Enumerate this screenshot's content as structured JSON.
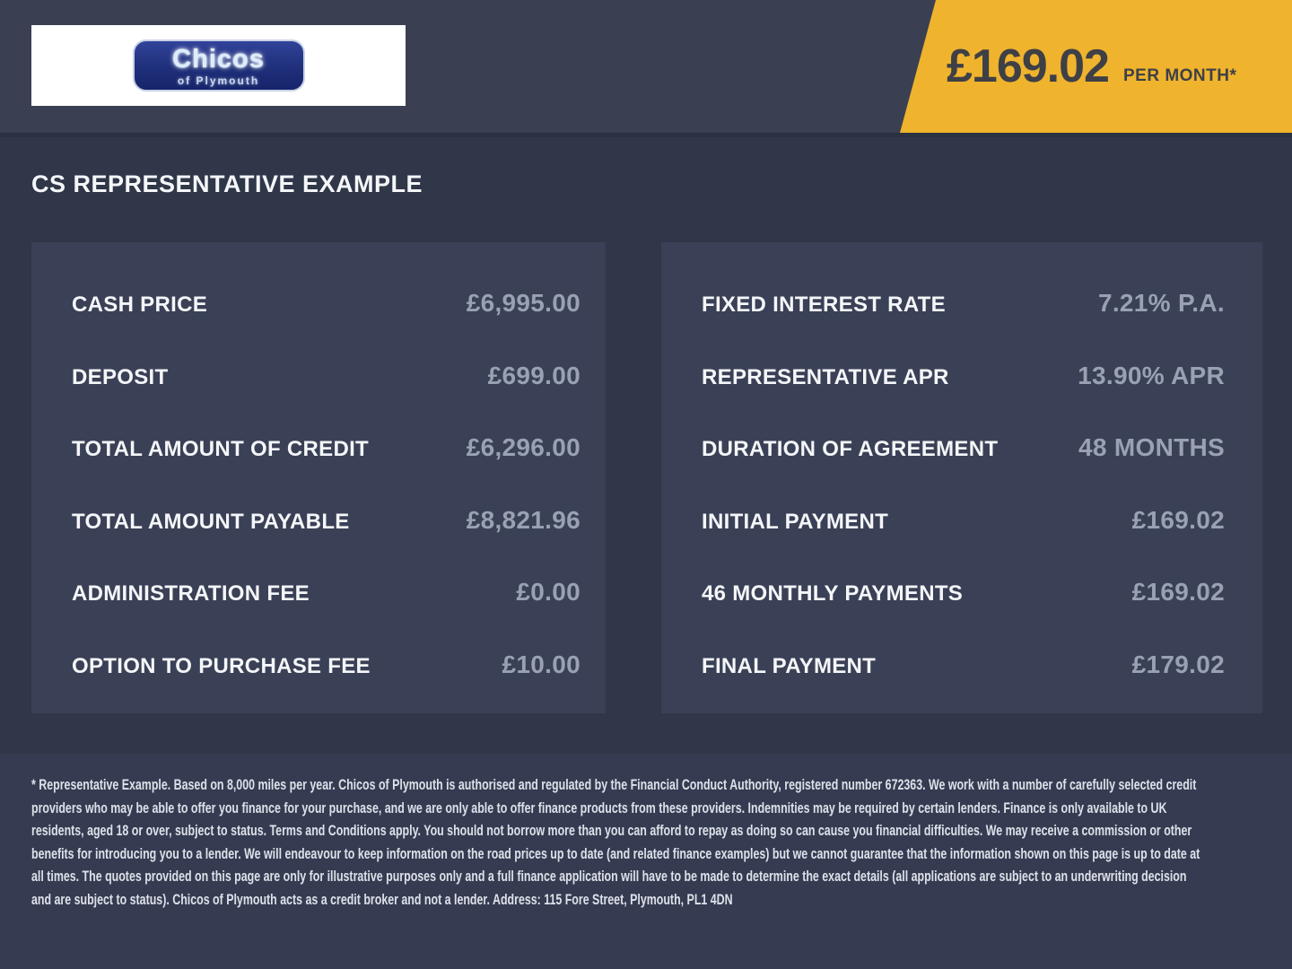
{
  "header": {
    "logo": {
      "brand": "Chicos",
      "tagline": "of Plymouth"
    },
    "price_banner": {
      "amount": "£169.02",
      "period": "PER MONTH*"
    }
  },
  "page_title": "CS REPRESENTATIVE EXAMPLE",
  "finance": {
    "left": [
      {
        "label": "CASH PRICE",
        "value": "£6,995.00"
      },
      {
        "label": "DEPOSIT",
        "value": "£699.00"
      },
      {
        "label": "TOTAL AMOUNT OF CREDIT",
        "value": "£6,296.00"
      },
      {
        "label": "TOTAL AMOUNT PAYABLE",
        "value": "£8,821.96"
      },
      {
        "label": "ADMINISTRATION FEE",
        "value": "£0.00"
      },
      {
        "label": "OPTION TO PURCHASE FEE",
        "value": "£10.00"
      }
    ],
    "right": [
      {
        "label": "FIXED INTEREST RATE",
        "value": "7.21% P.A."
      },
      {
        "label": "REPRESENTATIVE APR",
        "value": "13.90% APR"
      },
      {
        "label": "DURATION OF AGREEMENT",
        "value": "48 MONTHS"
      },
      {
        "label": "INITIAL PAYMENT",
        "value": "£169.02"
      },
      {
        "label": "46 MONTHLY PAYMENTS",
        "value": "£169.02"
      },
      {
        "label": "FINAL PAYMENT",
        "value": "£179.02"
      }
    ]
  },
  "footer": {
    "disclaimer": "* Representative Example. Based on 8,000 miles per year. Chicos of Plymouth is authorised and regulated by the Financial Conduct Authority, registered number 672363. We work with a number of carefully selected credit providers who may be able to offer you finance for your purchase, and we are only able to offer finance products from these providers. Indemnities may be required by certain lenders. Finance is only available to UK residents, aged 18 or over, subject to status. Terms and Conditions apply. You should not borrow more than you can afford to repay as doing so can cause you financial difficulties. We may receive a commission or other benefits for introducing you to a lender. We will endeavour to keep information on the road prices up to date (and related finance examples) but we cannot guarantee that the information shown on this page is up to date at all times. The quotes provided on this page are only for illustrative purposes only and a full finance application will have to be made to determine the exact details (all applications are subject to an underwriting decision and are subject to status). Chicos of Plymouth acts as a credit broker and not a lender. Address: 115 Fore Street, Plymouth, PL1 4DN"
  },
  "colors": {
    "accent_yellow": "#efb32d",
    "page_bg": "#303748",
    "header_bg": "#3a4052",
    "panel_bg": "#3a4156",
    "footer_bg": "#353c51",
    "label_color": "#f4f6f9",
    "value_color": "#99a1b3",
    "banner_text": "#3e4046",
    "logo_blue": "#1f2f7a"
  }
}
